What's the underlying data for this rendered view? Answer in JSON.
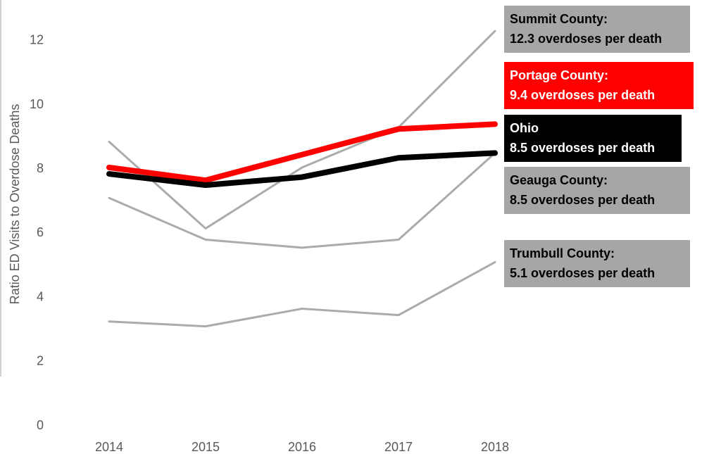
{
  "chart_data": {
    "type": "line",
    "y_label": "Ratio ED Visits to Overdose Deaths",
    "categories": [
      "2014",
      "2015",
      "2016",
      "2017",
      "2018"
    ],
    "ylim": [
      0,
      13
    ],
    "yticks": [
      0,
      2,
      4,
      6,
      8,
      10,
      12
    ],
    "grid": false,
    "series": [
      {
        "name": "Summit County:",
        "color": "#ababab",
        "label_color": "#a6a6a6",
        "text_color": "#000000",
        "values": [
          8.85,
          6.15,
          8.05,
          9.3,
          12.3
        ],
        "value_labels": [
          null,
          null,
          null,
          null,
          "12.3 overdoses per death"
        ]
      },
      {
        "name": "Geauga County:",
        "color": "#ababab",
        "label_color": "#a6a6a6",
        "text_color": "#000000",
        "values": [
          7.1,
          5.8,
          5.55,
          5.8,
          8.5
        ],
        "value_labels": [
          null,
          null,
          null,
          null,
          "8.5 overdoses per death"
        ]
      },
      {
        "name": "Trumbull County:",
        "color": "#ababab",
        "label_color": "#a6a6a6",
        "text_color": "#000000",
        "values": [
          3.25,
          3.1,
          3.65,
          3.45,
          5.1
        ],
        "value_labels": [
          null,
          null,
          null,
          null,
          "5.1 overdoses per death"
        ]
      },
      {
        "name": "Portage County:",
        "color": "#ff0000",
        "label_color": "#ff0000",
        "text_color": "#ffffff",
        "values": [
          8.05,
          7.65,
          8.45,
          9.25,
          9.4
        ],
        "value_labels": [
          null,
          null,
          null,
          null,
          "9.4 overdoses per death"
        ]
      },
      {
        "name": "Ohio",
        "color": "#000000",
        "label_color": "#000000",
        "text_color": "#ffffff",
        "values": [
          7.85,
          7.5,
          7.75,
          8.35,
          8.5
        ],
        "value_labels": [
          null,
          null,
          null,
          null,
          "8.5 overdoses per death"
        ]
      }
    ]
  }
}
